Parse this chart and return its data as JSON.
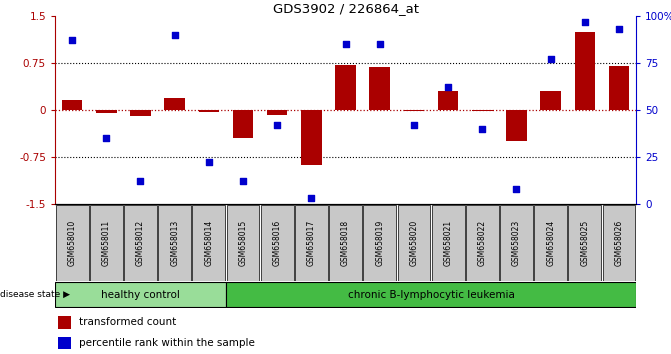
{
  "title": "GDS3902 / 226864_at",
  "samples": [
    "GSM658010",
    "GSM658011",
    "GSM658012",
    "GSM658013",
    "GSM658014",
    "GSM658015",
    "GSM658016",
    "GSM658017",
    "GSM658018",
    "GSM658019",
    "GSM658020",
    "GSM658021",
    "GSM658022",
    "GSM658023",
    "GSM658024",
    "GSM658025",
    "GSM658026"
  ],
  "bar_values": [
    0.15,
    -0.05,
    -0.1,
    0.18,
    -0.04,
    -0.45,
    -0.08,
    -0.88,
    0.71,
    0.68,
    -0.02,
    0.3,
    -0.02,
    -0.5,
    0.3,
    1.25,
    0.7
  ],
  "dot_values": [
    87,
    35,
    12,
    90,
    22,
    12,
    42,
    3,
    85,
    85,
    42,
    62,
    40,
    8,
    77,
    97,
    93
  ],
  "healthy_count": 5,
  "group1_label": "healthy control",
  "group2_label": "chronic B-lymphocytic leukemia",
  "bar_color": "#AA0000",
  "dot_color": "#0000CC",
  "left_axis_color": "#AA0000",
  "right_axis_color": "#0000CC",
  "ylim_left": [
    -1.5,
    1.5
  ],
  "ylim_right": [
    0,
    100
  ],
  "yticks_left": [
    -1.5,
    -0.75,
    0.0,
    0.75,
    1.5
  ],
  "yticks_right": [
    0,
    25,
    50,
    75,
    100
  ],
  "ytick_labels_left": [
    "-1.5",
    "-0.75",
    "0",
    "0.75",
    "1.5"
  ],
  "ytick_labels_right": [
    "0",
    "25",
    "50",
    "75",
    "100%"
  ],
  "hlines_dotted": [
    0.75,
    -0.75
  ],
  "zero_line_color": "#AA0000",
  "sample_bg_color": "#C8C8C8",
  "healthy_bg": "#99DD99",
  "leukemia_bg": "#44BB44",
  "disease_state_label": "disease state",
  "legend_bar_label": "transformed count",
  "legend_dot_label": "percentile rank within the sample",
  "bar_width": 0.6
}
